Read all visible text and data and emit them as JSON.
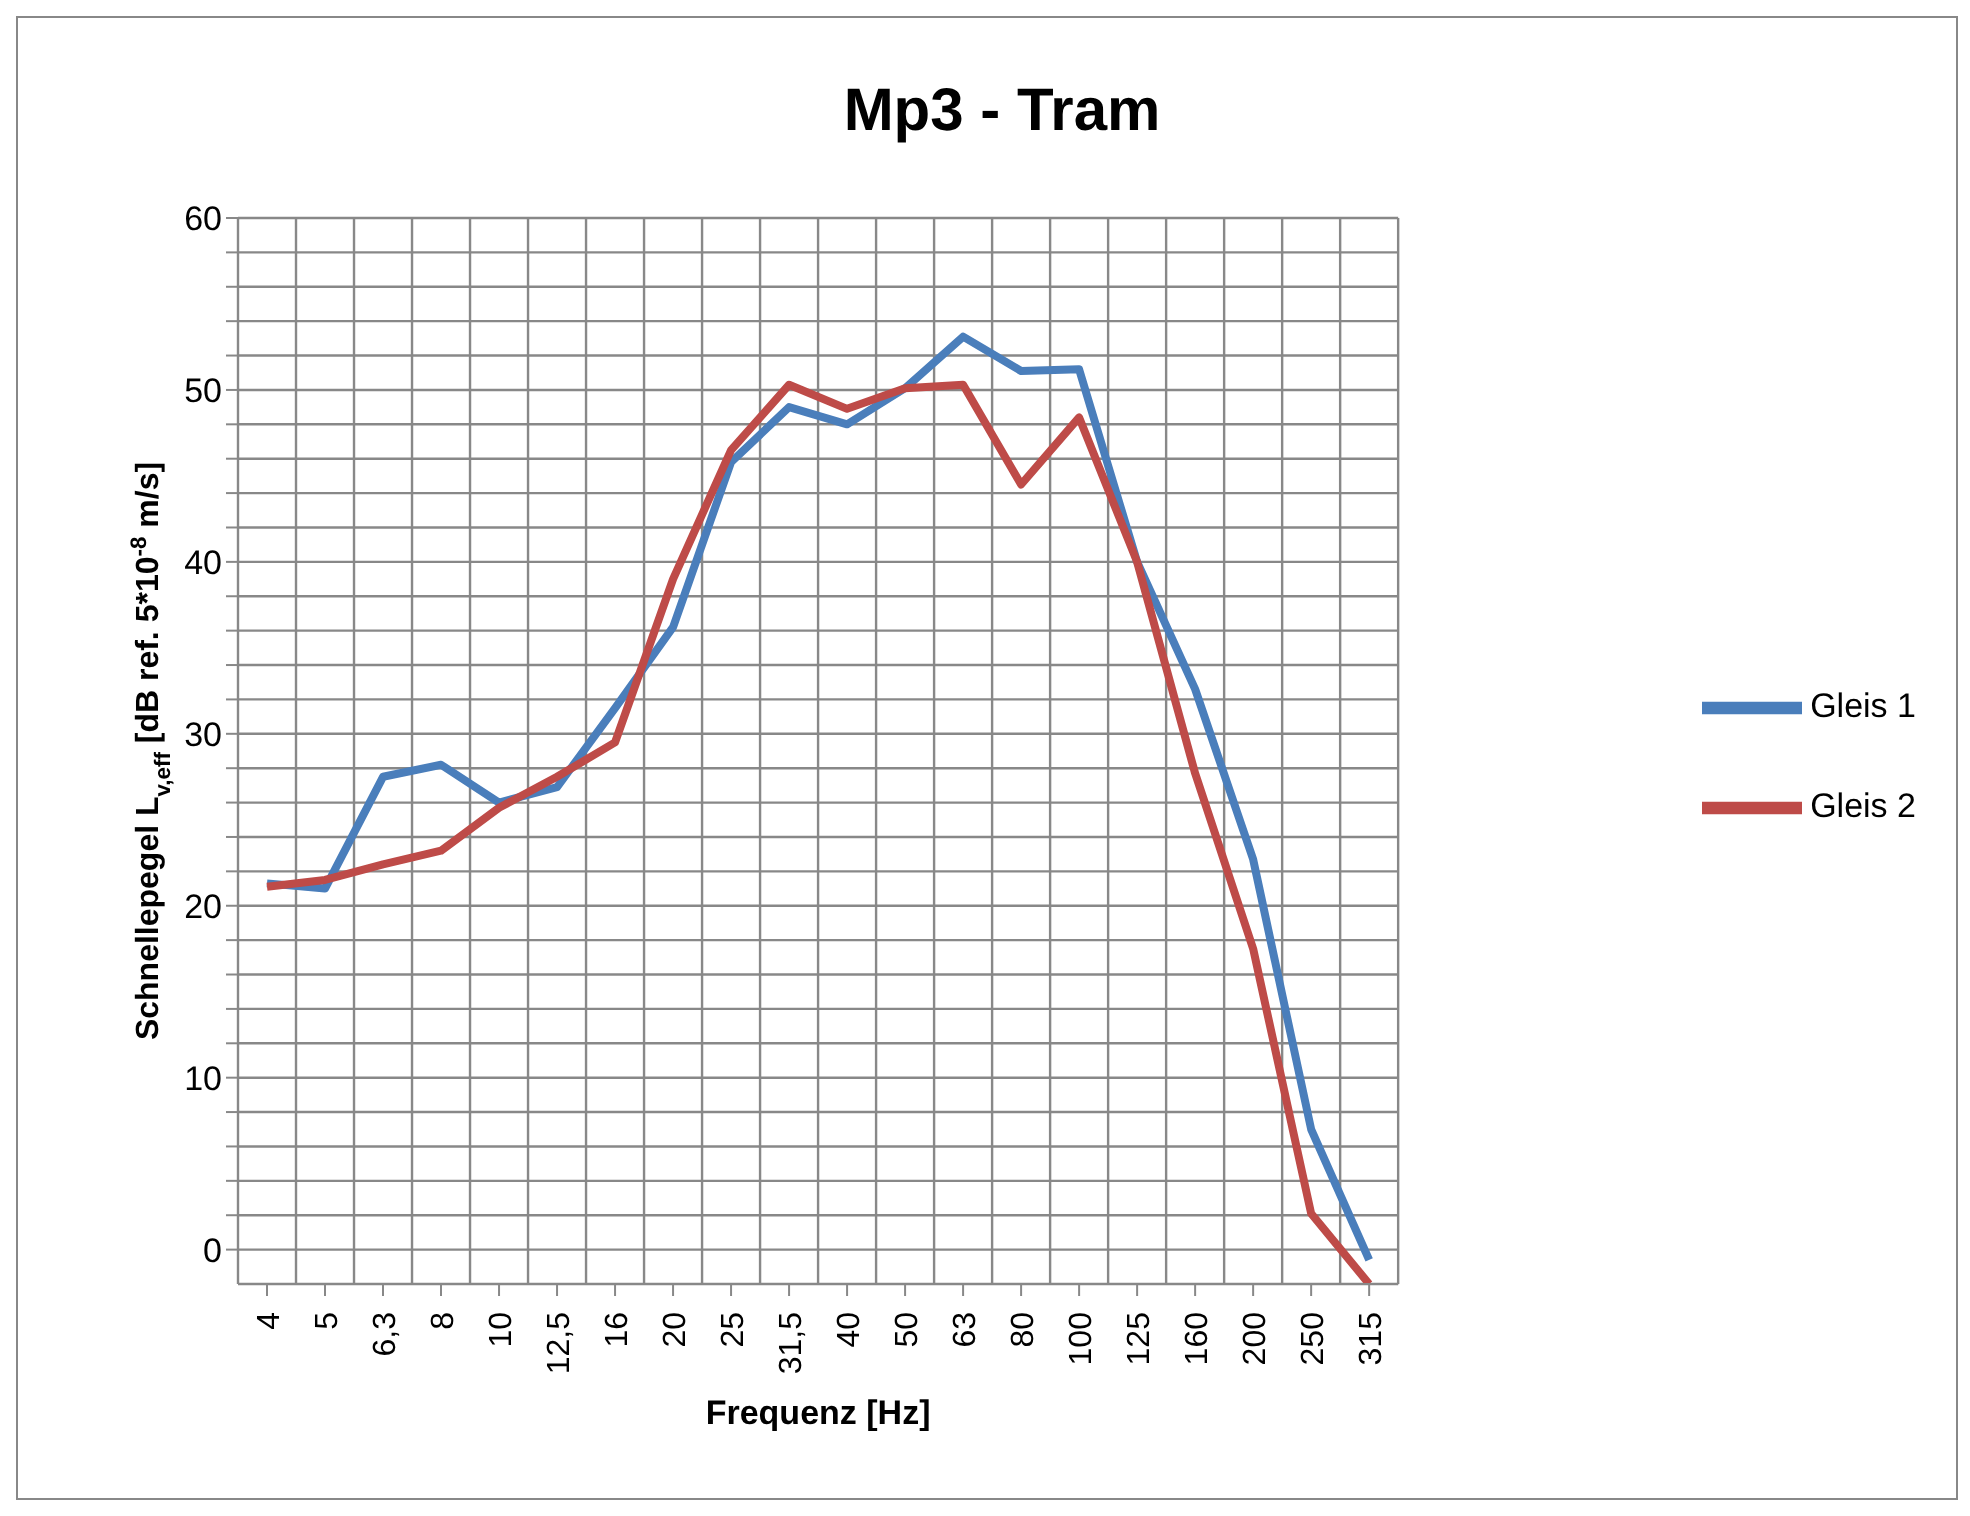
{
  "chart_data": {
    "type": "line",
    "title": "Mp3 - Tram",
    "xlabel": "Frequenz [Hz]",
    "ylabel": "Schnellepegel L$_{v,eff}$ [dB ref. 5*10$^{-8}$ m/s]",
    "categories": [
      "4",
      "5",
      "6,3",
      "8",
      "10",
      "12,5",
      "16",
      "20",
      "25",
      "31,5",
      "40",
      "50",
      "63",
      "80",
      "100",
      "125",
      "160",
      "200",
      "250",
      "315"
    ],
    "series": [
      {
        "name": "Gleis 1",
        "color": "#4a7ebb",
        "values": [
          21.3,
          21.0,
          27.5,
          28.2,
          26.0,
          26.9,
          31.5,
          36.2,
          45.8,
          49.0,
          48.0,
          50.1,
          53.1,
          51.1,
          51.2,
          40.0,
          32.6,
          22.7,
          7.0,
          -0.6
        ]
      },
      {
        "name": "Gleis 2",
        "color": "#be4b48",
        "values": [
          21.1,
          21.5,
          22.4,
          23.2,
          25.7,
          27.5,
          29.5,
          39.0,
          46.5,
          50.3,
          48.9,
          50.1,
          50.3,
          44.5,
          48.4,
          40.0,
          27.7,
          17.5,
          2.1,
          -2.0
        ]
      }
    ],
    "ylim": [
      -2,
      60
    ],
    "yticks": [
      0,
      {
        "value": 2,
        "label": null
      },
      {
        "value": 4,
        "label": null
      },
      {
        "value": 6,
        "label": null
      },
      {
        "value": 8,
        "label": null
      },
      10,
      {
        "value": 12,
        "label": null
      },
      {
        "value": 14,
        "label": null
      },
      {
        "value": 16,
        "label": null
      },
      {
        "value": 18,
        "label": null
      },
      20,
      {
        "value": 22,
        "label": null
      },
      {
        "value": 24,
        "label": null
      },
      {
        "value": 26,
        "label": null
      },
      {
        "value": 28,
        "label": null
      },
      30,
      {
        "value": 32,
        "label": null
      },
      {
        "value": 34,
        "label": null
      },
      {
        "value": 36,
        "label": null
      },
      {
        "value": 38,
        "label": null
      },
      40,
      {
        "value": 42,
        "label": null
      },
      {
        "value": 44,
        "label": null
      },
      {
        "value": 46,
        "label": null
      },
      {
        "value": 48,
        "label": null
      },
      50,
      {
        "value": 52,
        "label": null
      },
      {
        "value": 54,
        "label": null
      },
      {
        "value": 56,
        "label": null
      },
      {
        "value": 58,
        "label": null
      },
      60
    ],
    "grid": true,
    "legend": "right",
    "marker": "none",
    "line_style": "solid"
  }
}
